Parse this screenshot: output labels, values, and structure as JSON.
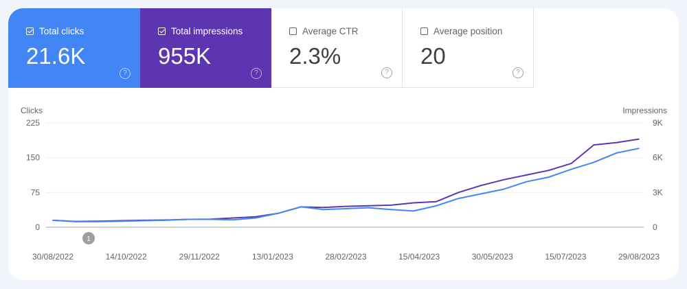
{
  "metrics": [
    {
      "label": "Total clicks",
      "value": "21.6K",
      "checked": true,
      "color": "#4285f4"
    },
    {
      "label": "Total impressions",
      "value": "955K",
      "checked": true,
      "color": "#5e35b1"
    },
    {
      "label": "Average CTR",
      "value": "2.3%",
      "checked": false
    },
    {
      "label": "Average position",
      "value": "20",
      "checked": false
    }
  ],
  "help_glyph": "?",
  "annotation_marker": "1",
  "chart_data": {
    "type": "line",
    "left_axis": {
      "label": "Clicks",
      "ticks": [
        "0",
        "75",
        "150",
        "225"
      ],
      "range": [
        0,
        225
      ]
    },
    "right_axis": {
      "label": "Impressions",
      "ticks": [
        "0",
        "3K",
        "6K",
        "9K"
      ],
      "range": [
        0,
        9000
      ]
    },
    "x_ticks": [
      "30/08/2022",
      "14/10/2022",
      "29/11/2022",
      "13/01/2023",
      "28/02/2023",
      "15/04/2023",
      "30/05/2023",
      "15/07/2023",
      "29/08/2023"
    ],
    "x_range": [
      "2022-08-30",
      "2023-08-29"
    ],
    "grid": true,
    "x": [
      "2022-08-30",
      "2022-09-13",
      "2022-09-27",
      "2022-10-11",
      "2022-10-25",
      "2022-11-08",
      "2022-11-22",
      "2022-12-06",
      "2022-12-20",
      "2023-01-03",
      "2023-01-17",
      "2023-01-31",
      "2023-02-14",
      "2023-02-28",
      "2023-03-14",
      "2023-03-28",
      "2023-04-11",
      "2023-04-25",
      "2023-05-09",
      "2023-05-23",
      "2023-06-06",
      "2023-06-20",
      "2023-07-04",
      "2023-07-18",
      "2023-08-01",
      "2023-08-15",
      "2023-08-29"
    ],
    "series": [
      {
        "name": "Clicks",
        "axis": "left",
        "color": "#4285f4",
        "values": [
          15,
          12,
          12,
          13,
          14,
          15,
          17,
          17,
          16,
          20,
          30,
          44,
          38,
          40,
          42,
          38,
          35,
          46,
          62,
          72,
          82,
          98,
          108,
          125,
          140,
          160,
          170
        ]
      },
      {
        "name": "Impressions",
        "axis": "right",
        "color": "#5e35b1",
        "values": [
          600,
          500,
          520,
          560,
          600,
          620,
          680,
          700,
          800,
          900,
          1200,
          1750,
          1700,
          1800,
          1850,
          1900,
          2100,
          2200,
          3000,
          3600,
          4100,
          4500,
          4900,
          5500,
          7100,
          7300,
          7600
        ]
      }
    ]
  }
}
